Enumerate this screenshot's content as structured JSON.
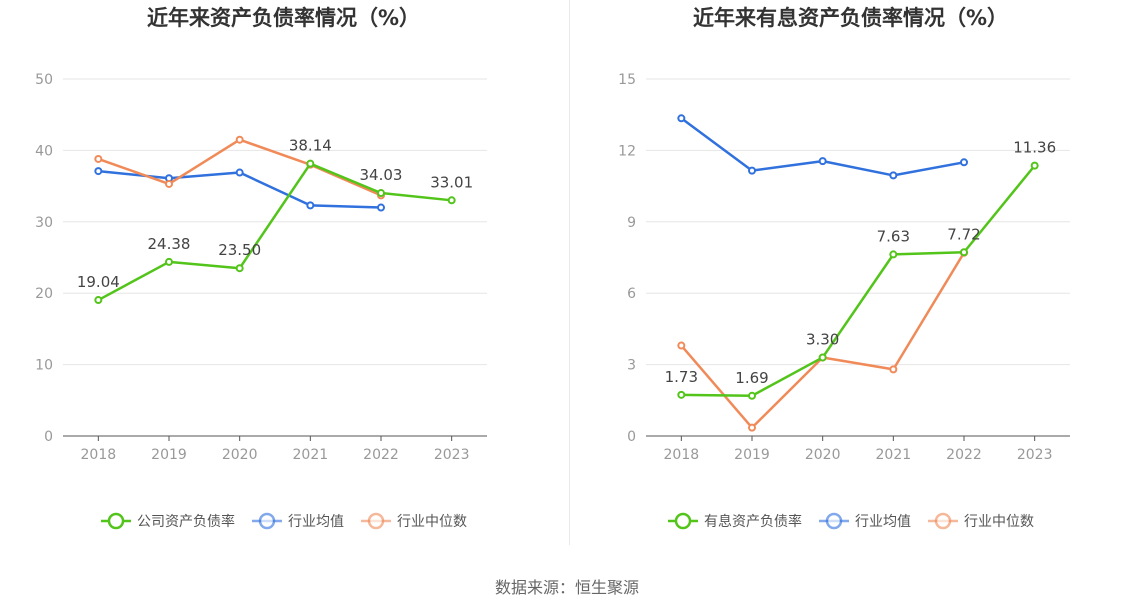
{
  "source": "数据来源：恒生聚源",
  "colors": {
    "company": "#52c41a",
    "avg": "#3071de",
    "median": "#f08a58",
    "grid": "#e6e6e6",
    "axis": "#555555",
    "tick": "#999999",
    "label": "#444444"
  },
  "chart_data": [
    {
      "type": "line",
      "title": "近年来资产负债率情况（%）",
      "categories": [
        "2018",
        "2019",
        "2020",
        "2021",
        "2022",
        "2023"
      ],
      "ylim": [
        0,
        50
      ],
      "yticks": [
        0,
        10,
        20,
        30,
        40,
        50
      ],
      "grid": true,
      "legend_position": "bottom-center",
      "series": [
        {
          "name": "公司资产负债率",
          "key": "company",
          "values": [
            19.04,
            24.38,
            23.5,
            38.14,
            34.03,
            33.01
          ],
          "labels": [
            "19.04",
            "24.38",
            "23.50",
            "38.14",
            "34.03",
            "33.01"
          ]
        },
        {
          "name": "行业均值",
          "key": "avg",
          "values": [
            37.1,
            36.1,
            36.9,
            32.3,
            32.0,
            null
          ]
        },
        {
          "name": "行业中位数",
          "key": "median",
          "values": [
            38.8,
            35.3,
            41.5,
            38.0,
            33.7,
            null
          ]
        }
      ]
    },
    {
      "type": "line",
      "title": "近年来有息资产负债率情况（%）",
      "categories": [
        "2018",
        "2019",
        "2020",
        "2021",
        "2022",
        "2023"
      ],
      "ylim": [
        0,
        15
      ],
      "yticks": [
        0,
        3,
        6,
        9,
        12,
        15
      ],
      "grid": true,
      "legend_position": "bottom-center",
      "series": [
        {
          "name": "有息资产负债率",
          "key": "company",
          "values": [
            1.73,
            1.69,
            3.3,
            7.63,
            7.72,
            11.36
          ],
          "labels": [
            "1.73",
            "1.69",
            "3.30",
            "7.63",
            "7.72",
            "11.36"
          ]
        },
        {
          "name": "行业均值",
          "key": "avg",
          "values": [
            13.35,
            11.15,
            11.55,
            10.95,
            11.5,
            null
          ]
        },
        {
          "name": "行业中位数",
          "key": "median",
          "values": [
            3.8,
            0.35,
            3.3,
            2.8,
            7.7,
            null
          ]
        }
      ]
    }
  ]
}
